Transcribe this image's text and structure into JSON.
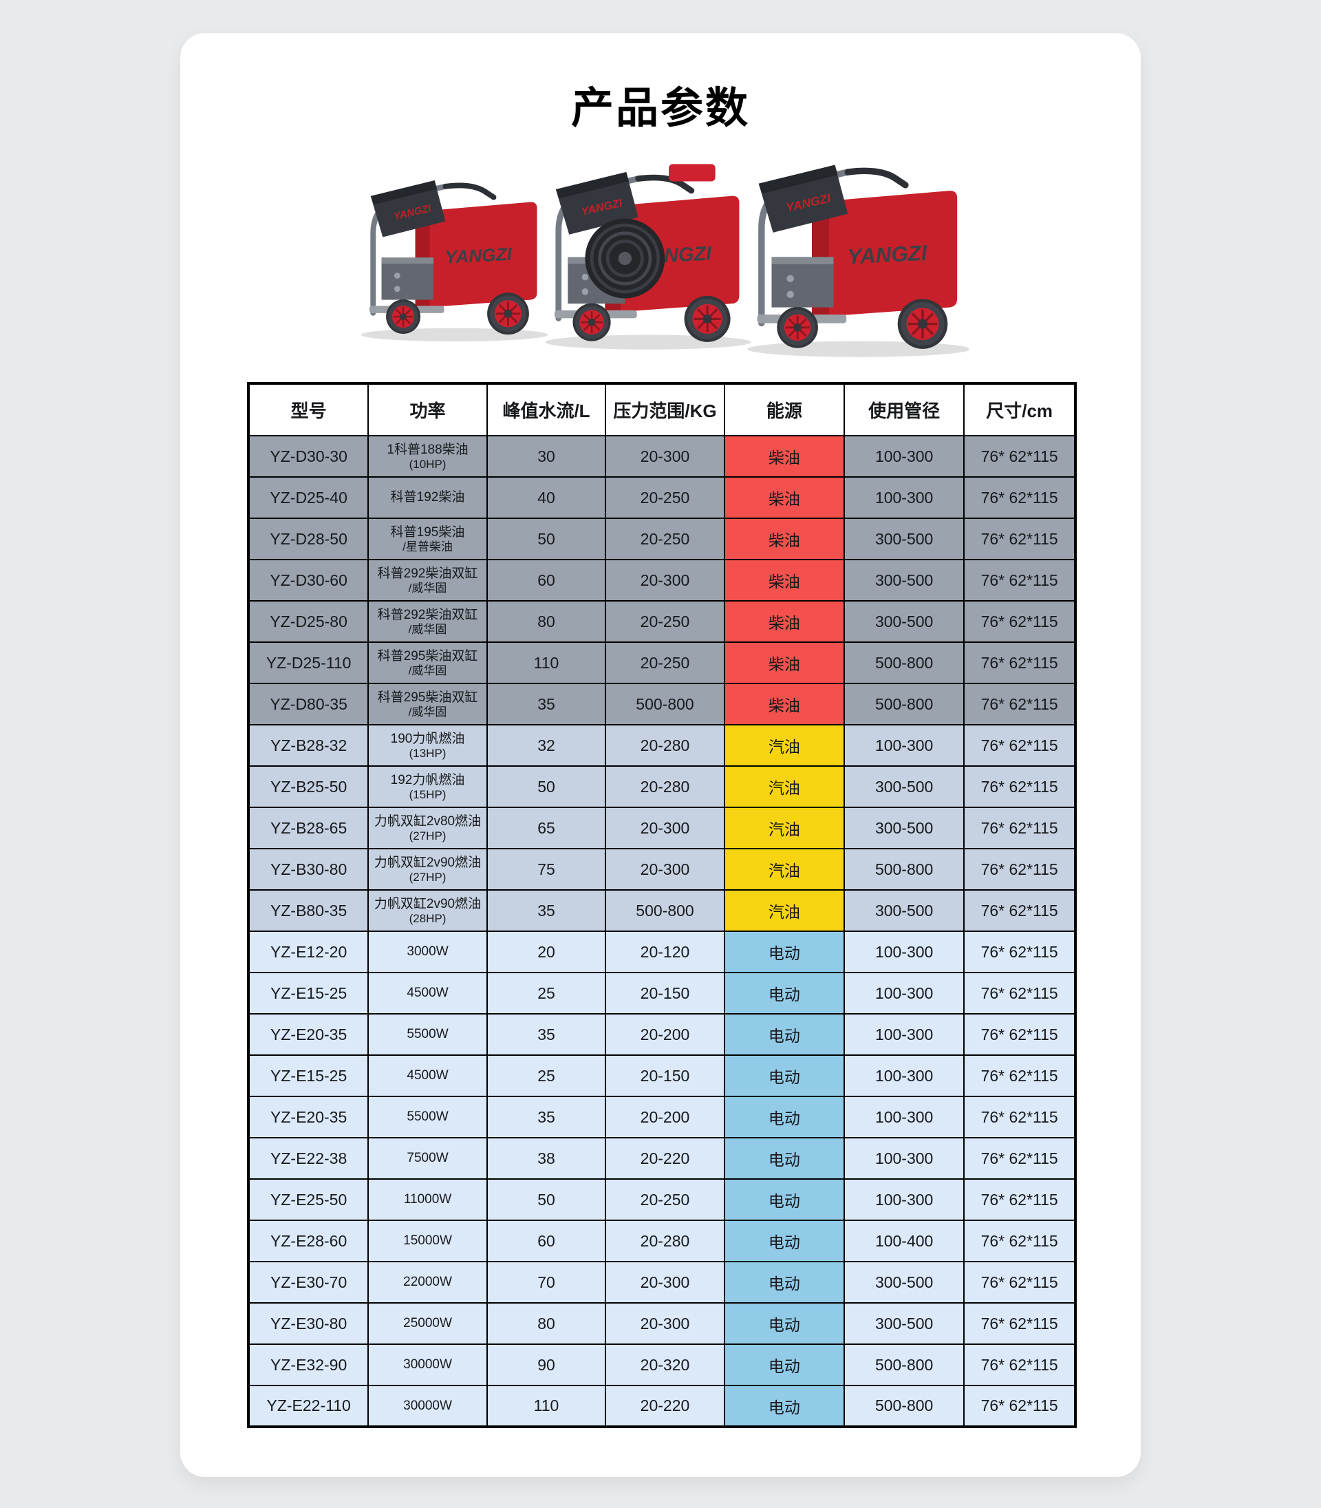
{
  "page": {
    "title": "产品参数"
  },
  "hero": {
    "brand": "YANGZI",
    "description": "three-red-pressure-washer-machines"
  },
  "colors": {
    "page_bg": "#e9eaec",
    "card_bg": "#ffffff",
    "border": "#000000",
    "diesel_row_bg": "#9aa3ae",
    "diesel_energy_bg": "#f4504e",
    "petrol_row_bg": "#c6d2e2",
    "petrol_energy_bg": "#f6d411",
    "electric_row_bg": "#dbe9f9",
    "electric_energy_bg": "#92cbe8",
    "machine_red": "#c8202a"
  },
  "table": {
    "headers": [
      "型号",
      "功率",
      "峰值水流/L",
      "压力范围/KG",
      "能源",
      "使用管径",
      "尺寸/cm"
    ],
    "rows": [
      {
        "type": "diesel",
        "model": "YZ-D30-30",
        "power": "1科普188柴油",
        "power2": "(10HP)",
        "flow": "30",
        "pressure": "20-300",
        "energy": "柴油",
        "pipe": "100-300",
        "size": "76* 62*115"
      },
      {
        "type": "diesel",
        "model": "YZ-D25-40",
        "power": "科普192柴油",
        "power2": "",
        "flow": "40",
        "pressure": "20-250",
        "energy": "柴油",
        "pipe": "100-300",
        "size": "76* 62*115"
      },
      {
        "type": "diesel",
        "model": "YZ-D28-50",
        "power": "科普195柴油",
        "power2": "/星普柴油",
        "flow": "50",
        "pressure": "20-250",
        "energy": "柴油",
        "pipe": "300-500",
        "size": "76* 62*115"
      },
      {
        "type": "diesel",
        "model": "YZ-D30-60",
        "power": "科普292柴油双缸",
        "power2": "/威华固",
        "flow": "60",
        "pressure": "20-300",
        "energy": "柴油",
        "pipe": "300-500",
        "size": "76* 62*115"
      },
      {
        "type": "diesel",
        "model": "YZ-D25-80",
        "power": "科普292柴油双缸",
        "power2": "/威华固",
        "flow": "80",
        "pressure": "20-250",
        "energy": "柴油",
        "pipe": "300-500",
        "size": "76* 62*115"
      },
      {
        "type": "diesel",
        "model": "YZ-D25-110",
        "power": "科普295柴油双缸",
        "power2": "/威华固",
        "flow": "110",
        "pressure": "20-250",
        "energy": "柴油",
        "pipe": "500-800",
        "size": "76* 62*115"
      },
      {
        "type": "diesel",
        "model": "YZ-D80-35",
        "power": "科普295柴油双缸",
        "power2": "/威华固",
        "flow": "35",
        "pressure": "500-800",
        "energy": "柴油",
        "pipe": "500-800",
        "size": "76* 62*115"
      },
      {
        "type": "petrol",
        "model": "YZ-B28-32",
        "power": "190力帆燃油",
        "power2": "(13HP)",
        "flow": "32",
        "pressure": "20-280",
        "energy": "汽油",
        "pipe": "100-300",
        "size": "76* 62*115"
      },
      {
        "type": "petrol",
        "model": "YZ-B25-50",
        "power": "192力帆燃油",
        "power2": "(15HP)",
        "flow": "50",
        "pressure": "20-280",
        "energy": "汽油",
        "pipe": "300-500",
        "size": "76* 62*115"
      },
      {
        "type": "petrol",
        "model": "YZ-B28-65",
        "power": "力帆双缸2v80燃油",
        "power2": "(27HP)",
        "flow": "65",
        "pressure": "20-300",
        "energy": "汽油",
        "pipe": "300-500",
        "size": "76* 62*115"
      },
      {
        "type": "petrol",
        "model": "YZ-B30-80",
        "power": "力帆双缸2v90燃油",
        "power2": "(27HP)",
        "flow": "75",
        "pressure": "20-300",
        "energy": "汽油",
        "pipe": "500-800",
        "size": "76* 62*115"
      },
      {
        "type": "petrol",
        "model": "YZ-B80-35",
        "power": "力帆双缸2v90燃油",
        "power2": "(28HP)",
        "flow": "35",
        "pressure": "500-800",
        "energy": "汽油",
        "pipe": "300-500",
        "size": "76* 62*115"
      },
      {
        "type": "electric",
        "model": "YZ-E12-20",
        "power": "3000W",
        "power2": "",
        "flow": "20",
        "pressure": "20-120",
        "energy": "电动",
        "pipe": "100-300",
        "size": "76* 62*115"
      },
      {
        "type": "electric",
        "model": "YZ-E15-25",
        "power": "4500W",
        "power2": "",
        "flow": "25",
        "pressure": "20-150",
        "energy": "电动",
        "pipe": "100-300",
        "size": "76* 62*115"
      },
      {
        "type": "electric",
        "model": "YZ-E20-35",
        "power": "5500W",
        "power2": "",
        "flow": "35",
        "pressure": "20-200",
        "energy": "电动",
        "pipe": "100-300",
        "size": "76* 62*115"
      },
      {
        "type": "electric",
        "model": "YZ-E15-25",
        "power": "4500W",
        "power2": "",
        "flow": "25",
        "pressure": "20-150",
        "energy": "电动",
        "pipe": "100-300",
        "size": "76* 62*115"
      },
      {
        "type": "electric",
        "model": "YZ-E20-35",
        "power": "5500W",
        "power2": "",
        "flow": "35",
        "pressure": "20-200",
        "energy": "电动",
        "pipe": "100-300",
        "size": "76* 62*115"
      },
      {
        "type": "electric",
        "model": "YZ-E22-38",
        "power": "7500W",
        "power2": "",
        "flow": "38",
        "pressure": "20-220",
        "energy": "电动",
        "pipe": "100-300",
        "size": "76* 62*115"
      },
      {
        "type": "electric",
        "model": "YZ-E25-50",
        "power": "11000W",
        "power2": "",
        "flow": "50",
        "pressure": "20-250",
        "energy": "电动",
        "pipe": "100-300",
        "size": "76* 62*115"
      },
      {
        "type": "electric",
        "model": "YZ-E28-60",
        "power": "15000W",
        "power2": "",
        "flow": "60",
        "pressure": "20-280",
        "energy": "电动",
        "pipe": "100-400",
        "size": "76* 62*115"
      },
      {
        "type": "electric",
        "model": "YZ-E30-70",
        "power": "22000W",
        "power2": "",
        "flow": "70",
        "pressure": "20-300",
        "energy": "电动",
        "pipe": "300-500",
        "size": "76* 62*115"
      },
      {
        "type": "electric",
        "model": "YZ-E30-80",
        "power": "25000W",
        "power2": "",
        "flow": "80",
        "pressure": "20-300",
        "energy": "电动",
        "pipe": "300-500",
        "size": "76* 62*115"
      },
      {
        "type": "electric",
        "model": "YZ-E32-90",
        "power": "30000W",
        "power2": "",
        "flow": "90",
        "pressure": "20-320",
        "energy": "电动",
        "pipe": "500-800",
        "size": "76* 62*115"
      },
      {
        "type": "electric",
        "model": "YZ-E22-110",
        "power": "30000W",
        "power2": "",
        "flow": "110",
        "pressure": "20-220",
        "energy": "电动",
        "pipe": "500-800",
        "size": "76* 62*115"
      }
    ]
  }
}
